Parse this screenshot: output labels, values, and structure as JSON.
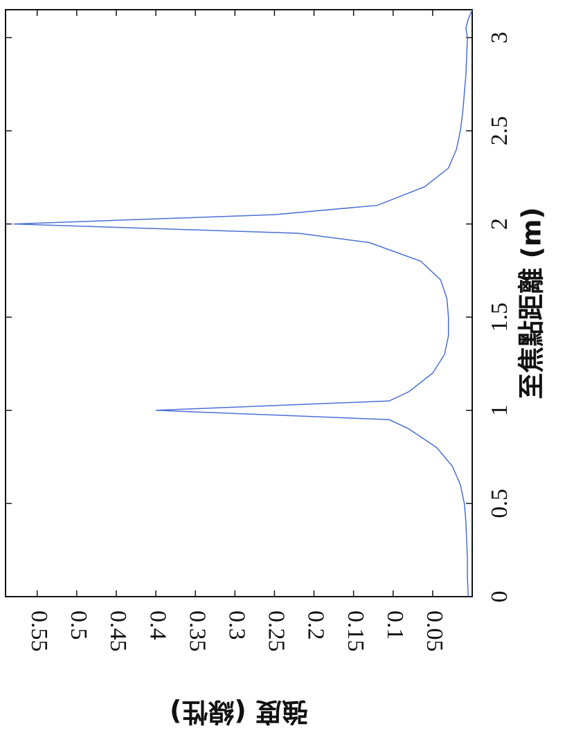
{
  "chart_data": {
    "type": "line",
    "title": "",
    "xlabel": "至焦點距離 (m)",
    "ylabel": "強度 (線性)",
    "xlim": [
      0,
      3.15
    ],
    "ylim": [
      0,
      0.59
    ],
    "x_ticks": [
      "0",
      "0.5",
      "1",
      "1.5",
      "2",
      "2.5",
      "3"
    ],
    "y_ticks": [
      "0.05",
      "0.1",
      "0.15",
      "0.2",
      "0.25",
      "0.3",
      "0.35",
      "0.4",
      "0.45",
      "0.5",
      "0.55"
    ],
    "grid": false,
    "orientation": "rotated 90 degrees clockwise",
    "series": [
      {
        "color": "#4a6fd4",
        "x": [
          0.0,
          0.1,
          0.2,
          0.3,
          0.4,
          0.5,
          0.6,
          0.7,
          0.8,
          0.9,
          0.95,
          1.0,
          1.05,
          1.1,
          1.2,
          1.3,
          1.4,
          1.5,
          1.6,
          1.7,
          1.8,
          1.9,
          1.95,
          2.0,
          2.05,
          2.1,
          2.2,
          2.3,
          2.4,
          2.5,
          2.6,
          2.7,
          2.8,
          2.9,
          3.0,
          3.05,
          3.1,
          3.15
        ],
        "y": [
          0.005,
          0.006,
          0.006,
          0.007,
          0.008,
          0.01,
          0.015,
          0.025,
          0.045,
          0.08,
          0.105,
          0.4,
          0.105,
          0.08,
          0.05,
          0.035,
          0.03,
          0.03,
          0.032,
          0.04,
          0.065,
          0.13,
          0.22,
          0.58,
          0.25,
          0.12,
          0.06,
          0.03,
          0.02,
          0.015,
          0.012,
          0.01,
          0.008,
          0.007,
          0.006,
          0.008,
          0.005,
          0.0
        ]
      }
    ]
  }
}
